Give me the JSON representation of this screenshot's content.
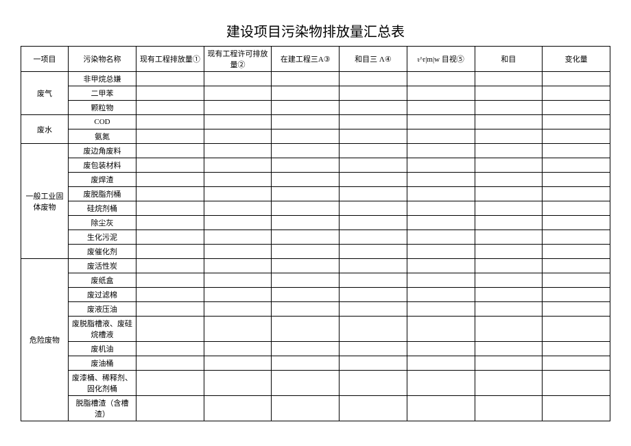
{
  "title": "建设项目污染物排放量汇总表",
  "headers": [
    "一项目",
    "污染物名称",
    "现有工程排放量①",
    "现有工程许可排放量②",
    "在建工程三A③",
    "和目三 Λ④",
    "ι^r|m|w 目视⑤",
    "和目",
    "变化量"
  ],
  "categories": [
    {
      "name": "废气",
      "items": [
        "非甲烷总嫌",
        "二甲苯",
        "颗粒物"
      ]
    },
    {
      "name": "废水",
      "items": [
        "COD",
        "氨氮"
      ]
    },
    {
      "name": "一般工业固体废物",
      "items": [
        "废边角废料",
        "废包装材料",
        "废焊渣",
        "废脱脂剂桶",
        "硅烷剂桶",
        "除尘灰",
        "生化污泥",
        "废催化剂"
      ]
    },
    {
      "name": "危险废物",
      "items": [
        "废活性炭",
        "废纸盒",
        "废过滤棉",
        "废液压油",
        "废脱脂槽液、废硅烷槽液",
        "废机油",
        "废油桶",
        "废漆桶、稀释剂、固化剂桶",
        "脱脂槽渣（含槽渣）"
      ]
    }
  ],
  "colors": {
    "border": "#000000",
    "bg": "#ffffff",
    "text": "#000000"
  },
  "font": {
    "title_size": 20,
    "cell_size": 11
  }
}
